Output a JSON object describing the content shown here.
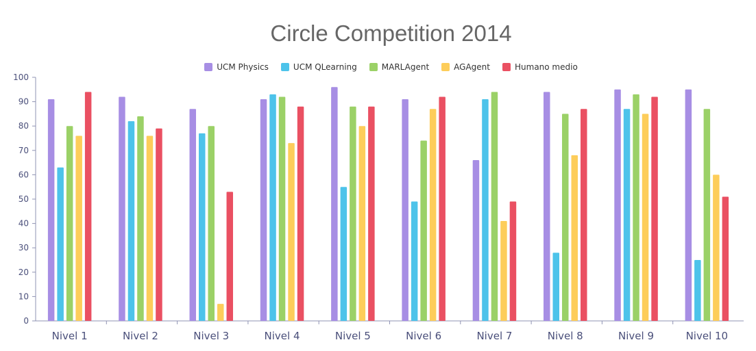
{
  "chart_data": {
    "type": "bar",
    "title": "Circle Competition 2014",
    "xlabel": "",
    "ylabel": "",
    "ylim": [
      0,
      100
    ],
    "yticks": [
      0,
      10,
      20,
      30,
      40,
      50,
      60,
      70,
      80,
      90,
      100
    ],
    "grid": false,
    "legend_position": "top",
    "categories": [
      "Nivel 1",
      "Nivel 2",
      "Nivel 3",
      "Nivel 4",
      "Nivel 5",
      "Nivel 6",
      "Nivel 7",
      "Nivel 8",
      "Nivel 9",
      "Nivel 10"
    ],
    "series": [
      {
        "name": "UCM Physics",
        "color": "#a78ee4",
        "values": [
          91,
          92,
          87,
          91,
          96,
          91,
          66,
          94,
          95,
          95
        ]
      },
      {
        "name": "UCM QLearning",
        "color": "#4dc3ea",
        "values": [
          63,
          82,
          77,
          93,
          55,
          49,
          91,
          28,
          87,
          25
        ]
      },
      {
        "name": "MARLAgent",
        "color": "#9bd167",
        "values": [
          80,
          84,
          80,
          92,
          88,
          74,
          94,
          85,
          93,
          87
        ]
      },
      {
        "name": "AGAgent",
        "color": "#fdcd5a",
        "values": [
          76,
          76,
          7,
          73,
          80,
          87,
          41,
          68,
          85,
          60
        ]
      },
      {
        "name": "Humano medio",
        "color": "#ea5062",
        "values": [
          94,
          79,
          53,
          88,
          88,
          92,
          49,
          87,
          92,
          51
        ]
      }
    ]
  }
}
